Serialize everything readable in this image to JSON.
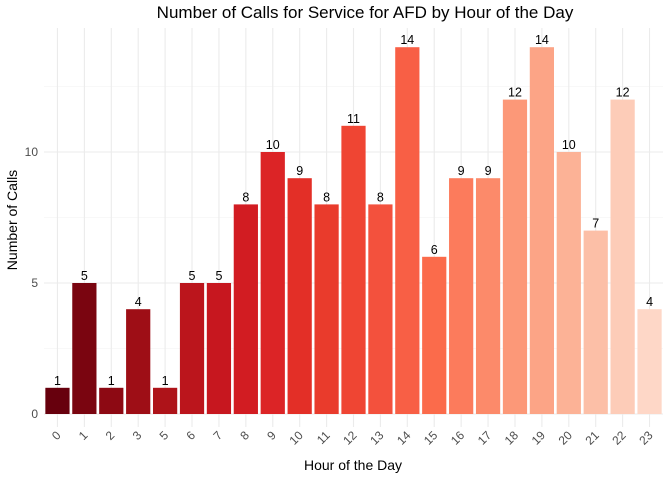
{
  "chart_data": {
    "type": "bar",
    "title": "Number of Calls for Service for AFD by Hour of the Day",
    "xlabel": "Hour of the Day",
    "ylabel": "Number of Calls",
    "categories": [
      "0",
      "1",
      "2",
      "3",
      "5",
      "6",
      "7",
      "8",
      "9",
      "10",
      "11",
      "12",
      "13",
      "14",
      "15",
      "16",
      "17",
      "18",
      "19",
      "20",
      "21",
      "22",
      "23"
    ],
    "values": [
      1,
      5,
      1,
      4,
      1,
      5,
      5,
      8,
      10,
      9,
      8,
      11,
      8,
      14,
      6,
      9,
      9,
      12,
      14,
      10,
      7,
      12,
      4
    ],
    "ylim": [
      0,
      15
    ],
    "yticks": [
      0,
      5,
      10
    ],
    "grid": true,
    "legend": "none",
    "colors": [
      "#67000d",
      "#7a0510",
      "#8d0913",
      "#9e0e16",
      "#ae1319",
      "#bb151c",
      "#c7171f",
      "#d21c22",
      "#dc2426",
      "#e32f27",
      "#e93b2c",
      "#ef4533",
      "#f3513d",
      "#f85f45",
      "#fb6b4b",
      "#fc7b5c",
      "#fc8a6a",
      "#fc9878",
      "#fca486",
      "#fcb296",
      "#fcbfa7",
      "#fdccb8",
      "#fed7c7"
    ]
  }
}
